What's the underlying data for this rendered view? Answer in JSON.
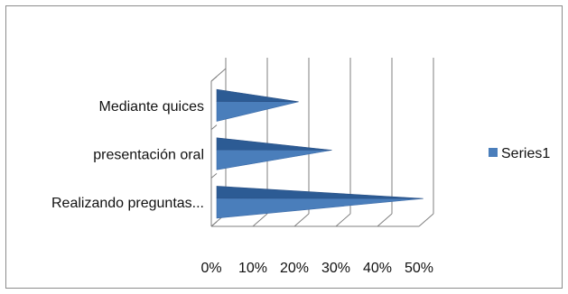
{
  "chart_data": {
    "type": "bar",
    "orientation": "horizontal",
    "style": "3d-pyramid",
    "categories": [
      "Realizando preguntas...",
      "presentación oral",
      "Mediante quices"
    ],
    "series": [
      {
        "name": "Series1",
        "values": [
          0.51,
          0.29,
          0.21
        ]
      }
    ],
    "x_ticks": [
      "0%",
      "10%",
      "20%",
      "30%",
      "40%",
      "50%"
    ],
    "xlim": [
      0,
      0.5
    ],
    "grid": true,
    "legend": "right",
    "colors": {
      "series1": "#4a7ebb",
      "series1_dark": "#2c5b94",
      "grid": "#7f7f7f"
    }
  }
}
